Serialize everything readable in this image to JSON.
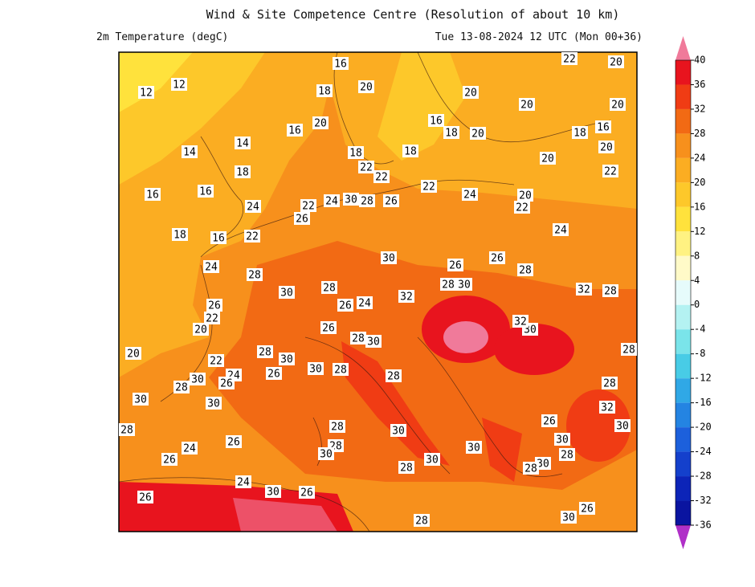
{
  "header": {
    "title": "Wind & Site Competence Centre (Resolution of about 10 km)",
    "field": "2m Temperature (degC)",
    "time": "Tue 13-08-2024 12 UTC (Mon 00+36)"
  },
  "colorbar": {
    "ticks": [
      40,
      36,
      32,
      28,
      24,
      20,
      16,
      12,
      8,
      4,
      0,
      -4,
      -8,
      -12,
      -16,
      -20,
      -24,
      -28,
      -32,
      -36
    ],
    "colors": [
      "#f07a9a",
      "#e8141e",
      "#f03c14",
      "#f26a14",
      "#f7901c",
      "#fbad22",
      "#fdc82a",
      "#ffe23c",
      "#fff282",
      "#fffac8",
      "#e6fbfb",
      "#b4f2f2",
      "#7ae4ea",
      "#48cce6",
      "#30a8e6",
      "#2484e2",
      "#1c60dc",
      "#1440cc",
      "#0c24b8",
      "#0a14a0",
      "#b030c8"
    ]
  },
  "contour_labels": [
    16,
    12,
    12,
    20,
    18,
    20,
    16,
    14,
    14,
    18,
    18,
    22,
    22,
    18,
    16,
    16,
    24,
    22,
    24,
    30,
    28,
    26,
    22,
    24,
    26,
    18,
    16,
    22,
    24,
    28,
    30,
    26,
    26,
    28,
    30,
    28,
    28,
    30,
    32,
    26,
    24,
    26,
    22,
    20,
    26,
    28,
    30,
    28,
    30,
    20,
    22,
    26,
    30,
    28,
    28,
    24,
    26,
    30,
    28,
    30,
    30,
    28,
    28,
    30,
    28,
    30,
    26,
    24,
    26,
    30,
    28,
    30,
    30,
    32,
    32,
    28,
    28,
    28,
    32,
    30,
    26,
    30,
    28,
    30,
    28,
    24,
    22,
    20,
    20,
    22,
    20,
    18,
    16,
    20,
    20,
    20,
    20,
    18,
    16,
    22,
    20,
    24,
    30,
    26,
    26,
    28,
    26,
    30
  ]
}
